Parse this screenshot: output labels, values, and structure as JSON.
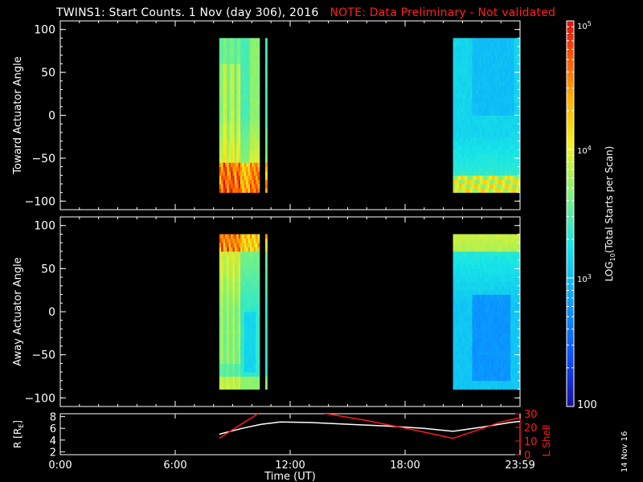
{
  "header": {
    "title": "TWINS1: Start Counts.  1 Nov (day 306), 2016",
    "note": "NOTE: Data Preliminary - Not validated",
    "note_color": "#ff2020"
  },
  "stamp": "14 Nov 16",
  "chart_data": [
    {
      "type": "heatmap",
      "panel": "toward",
      "ylabel": "Toward Actuator Angle",
      "x_range_hours": [
        0,
        24
      ],
      "ylim": [
        -110,
        110
      ],
      "yticks": [
        "100",
        "50",
        "0",
        "−50",
        "−100"
      ],
      "ytick_values": [
        100,
        50,
        0,
        -50,
        -100
      ],
      "data_coverage_hours": [
        [
          8.3,
          10.4
        ],
        [
          10.7,
          10.8
        ],
        [
          20.5,
          24.0
        ]
      ],
      "angle_coverage": [
        -90,
        90
      ],
      "description_levels": {
        "high_counts_near_angle": -80,
        "typical_log_counts": 3.5
      }
    },
    {
      "type": "heatmap",
      "panel": "away",
      "ylabel": "Away Actuator Angle",
      "x_range_hours": [
        0,
        24
      ],
      "ylim": [
        -110,
        110
      ],
      "yticks": [
        "100",
        "50",
        "0",
        "−50",
        "−100"
      ],
      "ytick_values": [
        100,
        50,
        0,
        -50,
        -100
      ],
      "data_coverage_hours": [
        [
          8.3,
          10.4
        ],
        [
          10.7,
          10.8
        ],
        [
          20.5,
          24.0
        ]
      ],
      "angle_coverage": [
        -90,
        90
      ],
      "description_levels": {
        "high_counts_near_angle": 80,
        "typical_log_counts": 3.3
      }
    },
    {
      "type": "line",
      "panel": "orbit",
      "ylabel_left": "R [R",
      "ylabel_left_sub": "E",
      "ylabel_left_end": "]",
      "ylabel_right": "L Shell",
      "x_range_hours": [
        0,
        24
      ],
      "ylim_left": [
        1.5,
        8.5
      ],
      "ylim_right": [
        0,
        30
      ],
      "yticks_left": [
        "8",
        "6",
        "4",
        "2"
      ],
      "ytick_values_left": [
        8,
        6,
        4,
        2
      ],
      "yticks_right": [
        "30",
        "20",
        "10",
        "0"
      ],
      "ytick_values_right": [
        30,
        20,
        10,
        0
      ],
      "series": [
        {
          "color": "#ffffff",
          "axis": "left",
          "x": [
            8.3,
            9.5,
            10.5,
            11.5,
            13.0,
            15.0,
            17.0,
            19.0,
            20.5,
            22.0,
            23.5,
            24.0
          ],
          "y": [
            5.0,
            6.0,
            6.7,
            7.1,
            7.0,
            6.7,
            6.4,
            6.0,
            5.5,
            6.2,
            7.0,
            7.2
          ]
        },
        {
          "color": "#ff1a1a",
          "axis": "right",
          "x": [
            8.3,
            9.3,
            10.1,
            10.5
          ],
          "y": [
            12,
            21,
            28,
            32
          ]
        },
        {
          "color": "#ff1a1a",
          "axis": "right",
          "x": [
            13.5,
            16.0,
            18.5,
            20.5
          ],
          "y": [
            31,
            25,
            18,
            12
          ]
        },
        {
          "color": "#ff1a1a",
          "axis": "right",
          "x": [
            20.5,
            22.0,
            23.0,
            24.0
          ],
          "y": [
            12,
            19,
            24,
            27
          ]
        }
      ]
    }
  ],
  "xaxis": {
    "label": "Time (UT)",
    "ticks": [
      "0:00",
      "6:00",
      "12:00",
      "18:00",
      "23:59"
    ],
    "tick_values": [
      0,
      6,
      12,
      18,
      24
    ]
  },
  "colorbar": {
    "label_prefix": "LOG",
    "label_sub": "10",
    "label_suffix": "(Total Starts per Scan)",
    "tick_labels": [
      {
        "base": "10",
        "exp": "5",
        "log": 5
      },
      {
        "base": "10",
        "exp": "4",
        "log": 4
      },
      {
        "base": "10",
        "exp": "3",
        "log": 3
      },
      {
        "base": "100",
        "exp": "",
        "log": 2
      }
    ],
    "range_log": [
      2,
      5
    ]
  }
}
